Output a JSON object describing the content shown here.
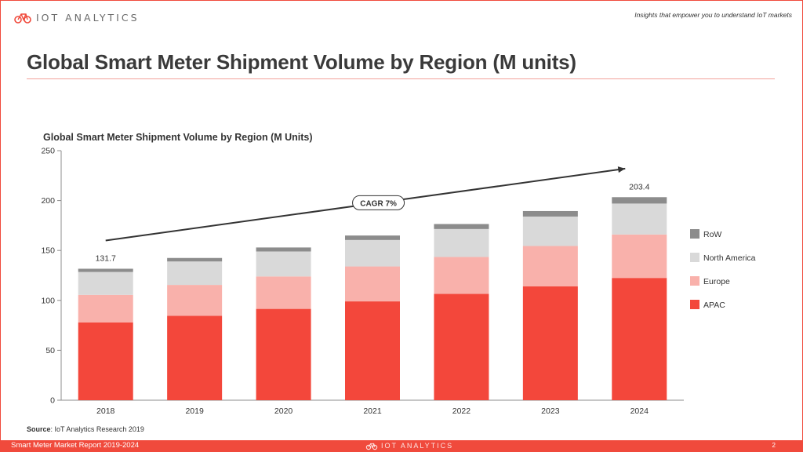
{
  "header": {
    "logo_text": "IOT ANALYTICS",
    "tagline": "Insights that empower you to understand IoT markets",
    "title": "Global Smart Meter Shipment Volume by Region (M units)"
  },
  "footer": {
    "report_name": "Smart Meter Market Report 2019-2024",
    "logo_text": "IOT ANALYTICS",
    "page_number": "2"
  },
  "source": {
    "label": "Source",
    "text": ": IoT Analytics Research 2019"
  },
  "chart_data": {
    "type": "bar",
    "stacked": true,
    "title": "Global Smart Meter Shipment Volume by Region (M Units)",
    "categories": [
      "2018",
      "2019",
      "2020",
      "2021",
      "2022",
      "2023",
      "2024"
    ],
    "series": [
      {
        "name": "APAC",
        "color": "#f3473b",
        "values": [
          78,
          84.5,
          91.5,
          99,
          106.5,
          114,
          122.5
        ]
      },
      {
        "name": "Europe",
        "color": "#f9b1ab",
        "values": [
          27.5,
          31,
          32.5,
          35,
          37,
          40.5,
          43.5
        ]
      },
      {
        "name": "North America",
        "color": "#d9d9d9",
        "values": [
          23,
          23.5,
          25,
          26.5,
          28,
          29.5,
          31
        ]
      },
      {
        "name": "RoW",
        "color": "#8c8c8c",
        "values": [
          3.2,
          3.5,
          4,
          4.5,
          5,
          5.5,
          6.4
        ]
      }
    ],
    "total_labels": [
      {
        "category": "2018",
        "text": "131.7"
      },
      {
        "category": "2024",
        "text": "203.4"
      }
    ],
    "annotation": {
      "text": "CAGR 7%",
      "from": [
        "2018",
        160
      ],
      "to": [
        "2024",
        232
      ]
    },
    "ylim": [
      0,
      250
    ],
    "yticks": [
      0,
      50,
      100,
      150,
      200,
      250
    ],
    "xlabel": "",
    "ylabel": "",
    "legend_position": "right",
    "legend_order": [
      "RoW",
      "North America",
      "Europe",
      "APAC"
    ],
    "grid": false
  }
}
